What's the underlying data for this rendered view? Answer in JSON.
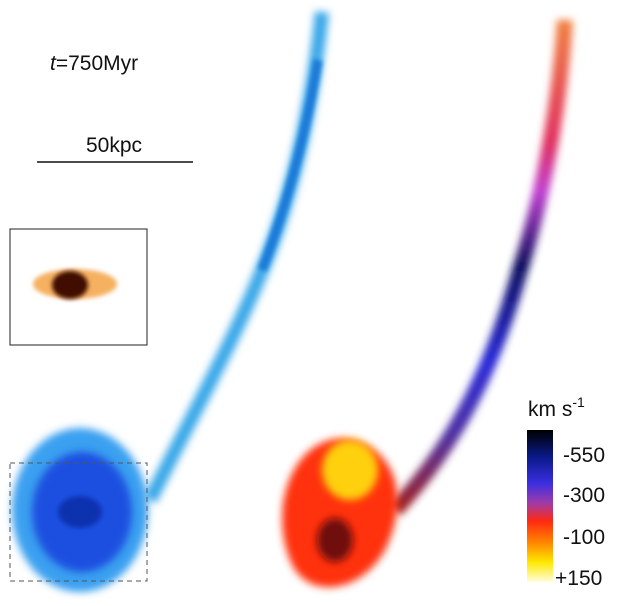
{
  "time_label": {
    "symbol": "t",
    "value": "=750Myr"
  },
  "scale_bar": {
    "label": "50kpc"
  },
  "colorbar": {
    "unit": "km s",
    "unit_exponent": "-1",
    "labels": [
      "-550",
      "-300",
      "-100",
      "+150"
    ]
  }
}
